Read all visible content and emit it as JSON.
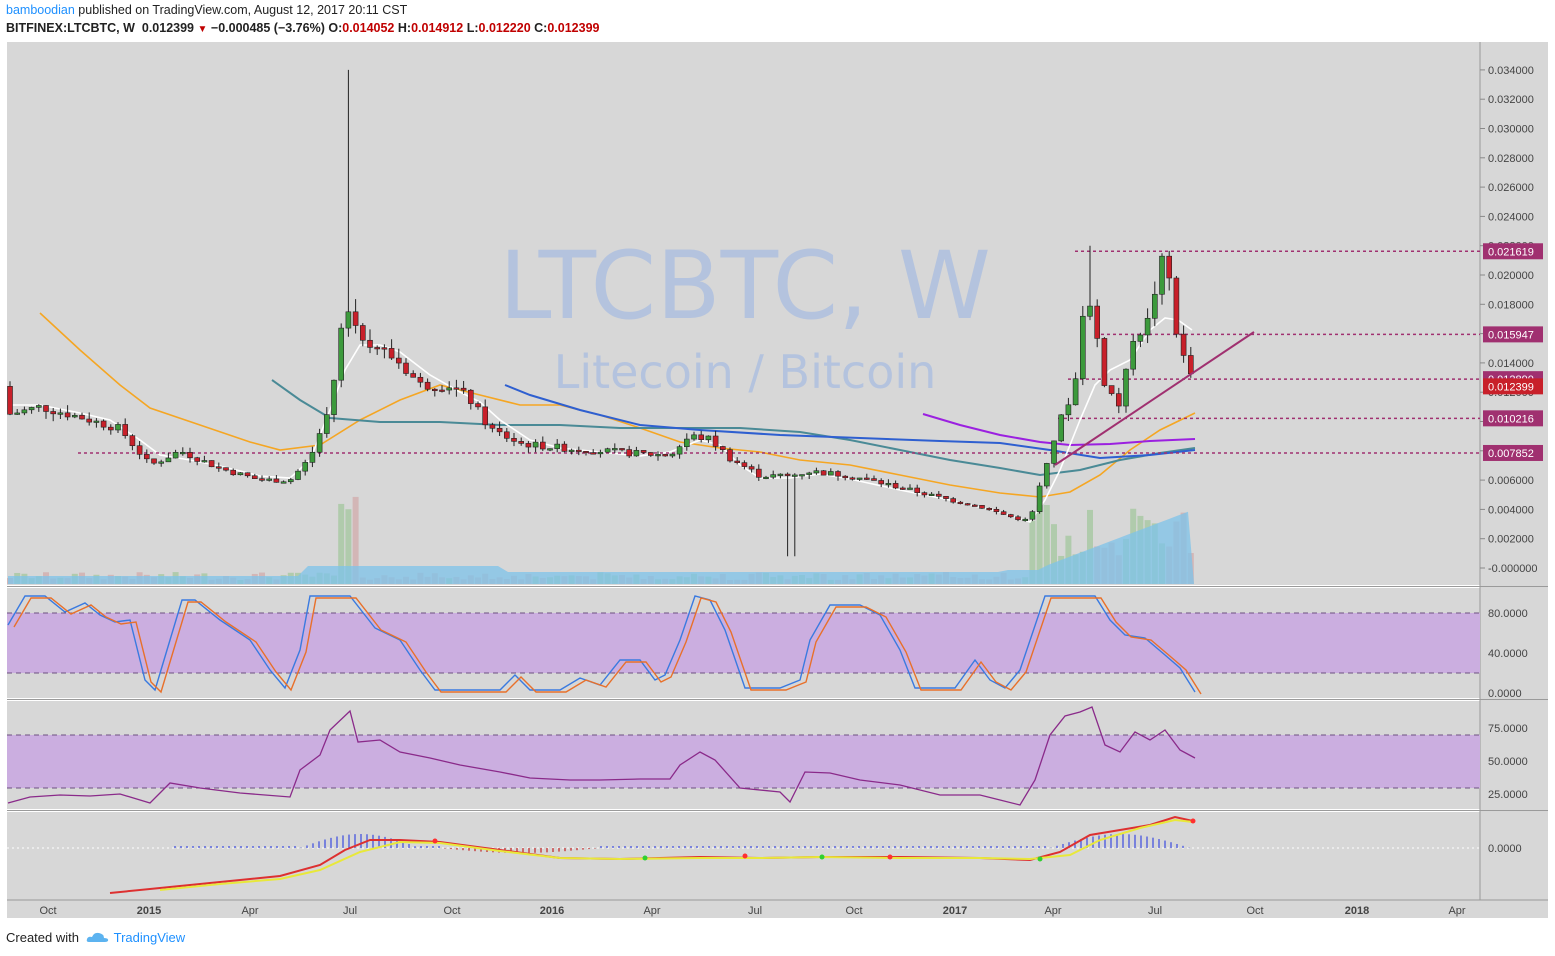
{
  "header": {
    "author": "bamboodian",
    "published_text": " published on TradingView.com, August 12, 2017 20:11 CST",
    "symbol": "BITFINEX:LTCBTC, W",
    "last": "0.012399",
    "change_arrow": "▼",
    "change": "−0.000485 (−3.76%)",
    "o_label": "O:",
    "o_value": "0.014052",
    "h_label": "H:",
    "h_value": "0.014912",
    "l_label": "L:",
    "l_value": "0.012220",
    "c_label": "C:",
    "c_value": "0.012399"
  },
  "watermark": {
    "title": "LTCBTC, W",
    "subtitle": "Litecoin / Bitcoin"
  },
  "footer": {
    "created_with": "Created with",
    "brand": "TradingView"
  },
  "colors": {
    "bg": "#d7d7d7",
    "up": "#3c9a3c",
    "down": "#c8202a",
    "accent": "#1e90ff",
    "band": "#cbaee0",
    "ma_white": "#ffffff",
    "ma_orange": "#f5a623",
    "ma_teal": "#4a8a96",
    "ma_blue": "#2e5fd0",
    "ma_purple": "#9b20e0",
    "level_line": "#a03070"
  },
  "chart_data": [
    {
      "type": "candlestick",
      "title": "LTCBTC, W",
      "subtitle": "Litecoin / Bitcoin",
      "x_ticks": [
        "Oct",
        "2015",
        "Apr",
        "Jul",
        "Oct",
        "2016",
        "Apr",
        "Jul",
        "Oct",
        "2017",
        "Apr",
        "Jul",
        "Oct",
        "2018",
        "Apr"
      ],
      "y_ticks": [
        "0.034000",
        "0.032000",
        "0.030000",
        "0.028000",
        "0.026000",
        "0.024000",
        "0.022000",
        "0.020000",
        "0.018000",
        "0.016000",
        "0.014000",
        "0.012000",
        "0.010000",
        "0.008000",
        "0.006000",
        "0.004000",
        "0.002000",
        "-0.000000"
      ],
      "ylim": [
        -0.001,
        0.035
      ],
      "level_labels": [
        {
          "label": "0.021619",
          "value": 0.021619,
          "color": "#a03070"
        },
        {
          "label": "0.015947",
          "value": 0.015947,
          "color": "#a03070"
        },
        {
          "label": "0.012890",
          "value": 0.01289,
          "color": "#a03070"
        },
        {
          "label": "0.012399",
          "value": 0.012399,
          "color": "#c8202a"
        },
        {
          "label": "0.010216",
          "value": 0.010216,
          "color": "#a03070"
        },
        {
          "label": "0.007852",
          "value": 0.007852,
          "color": "#a03070"
        }
      ]
    },
    {
      "type": "line",
      "name": "stoch",
      "y_ticks": [
        "80.0000",
        "40.0000",
        "0.0000"
      ],
      "ylim": [
        0,
        100
      ],
      "band": [
        20,
        80
      ]
    },
    {
      "type": "line",
      "name": "rsi",
      "y_ticks": [
        "75.0000",
        "50.0000",
        "25.0000"
      ],
      "ylim": [
        10,
        95
      ],
      "band": [
        30,
        70
      ]
    },
    {
      "type": "line",
      "name": "macd",
      "y_ticks": [
        "0.0000"
      ]
    }
  ]
}
